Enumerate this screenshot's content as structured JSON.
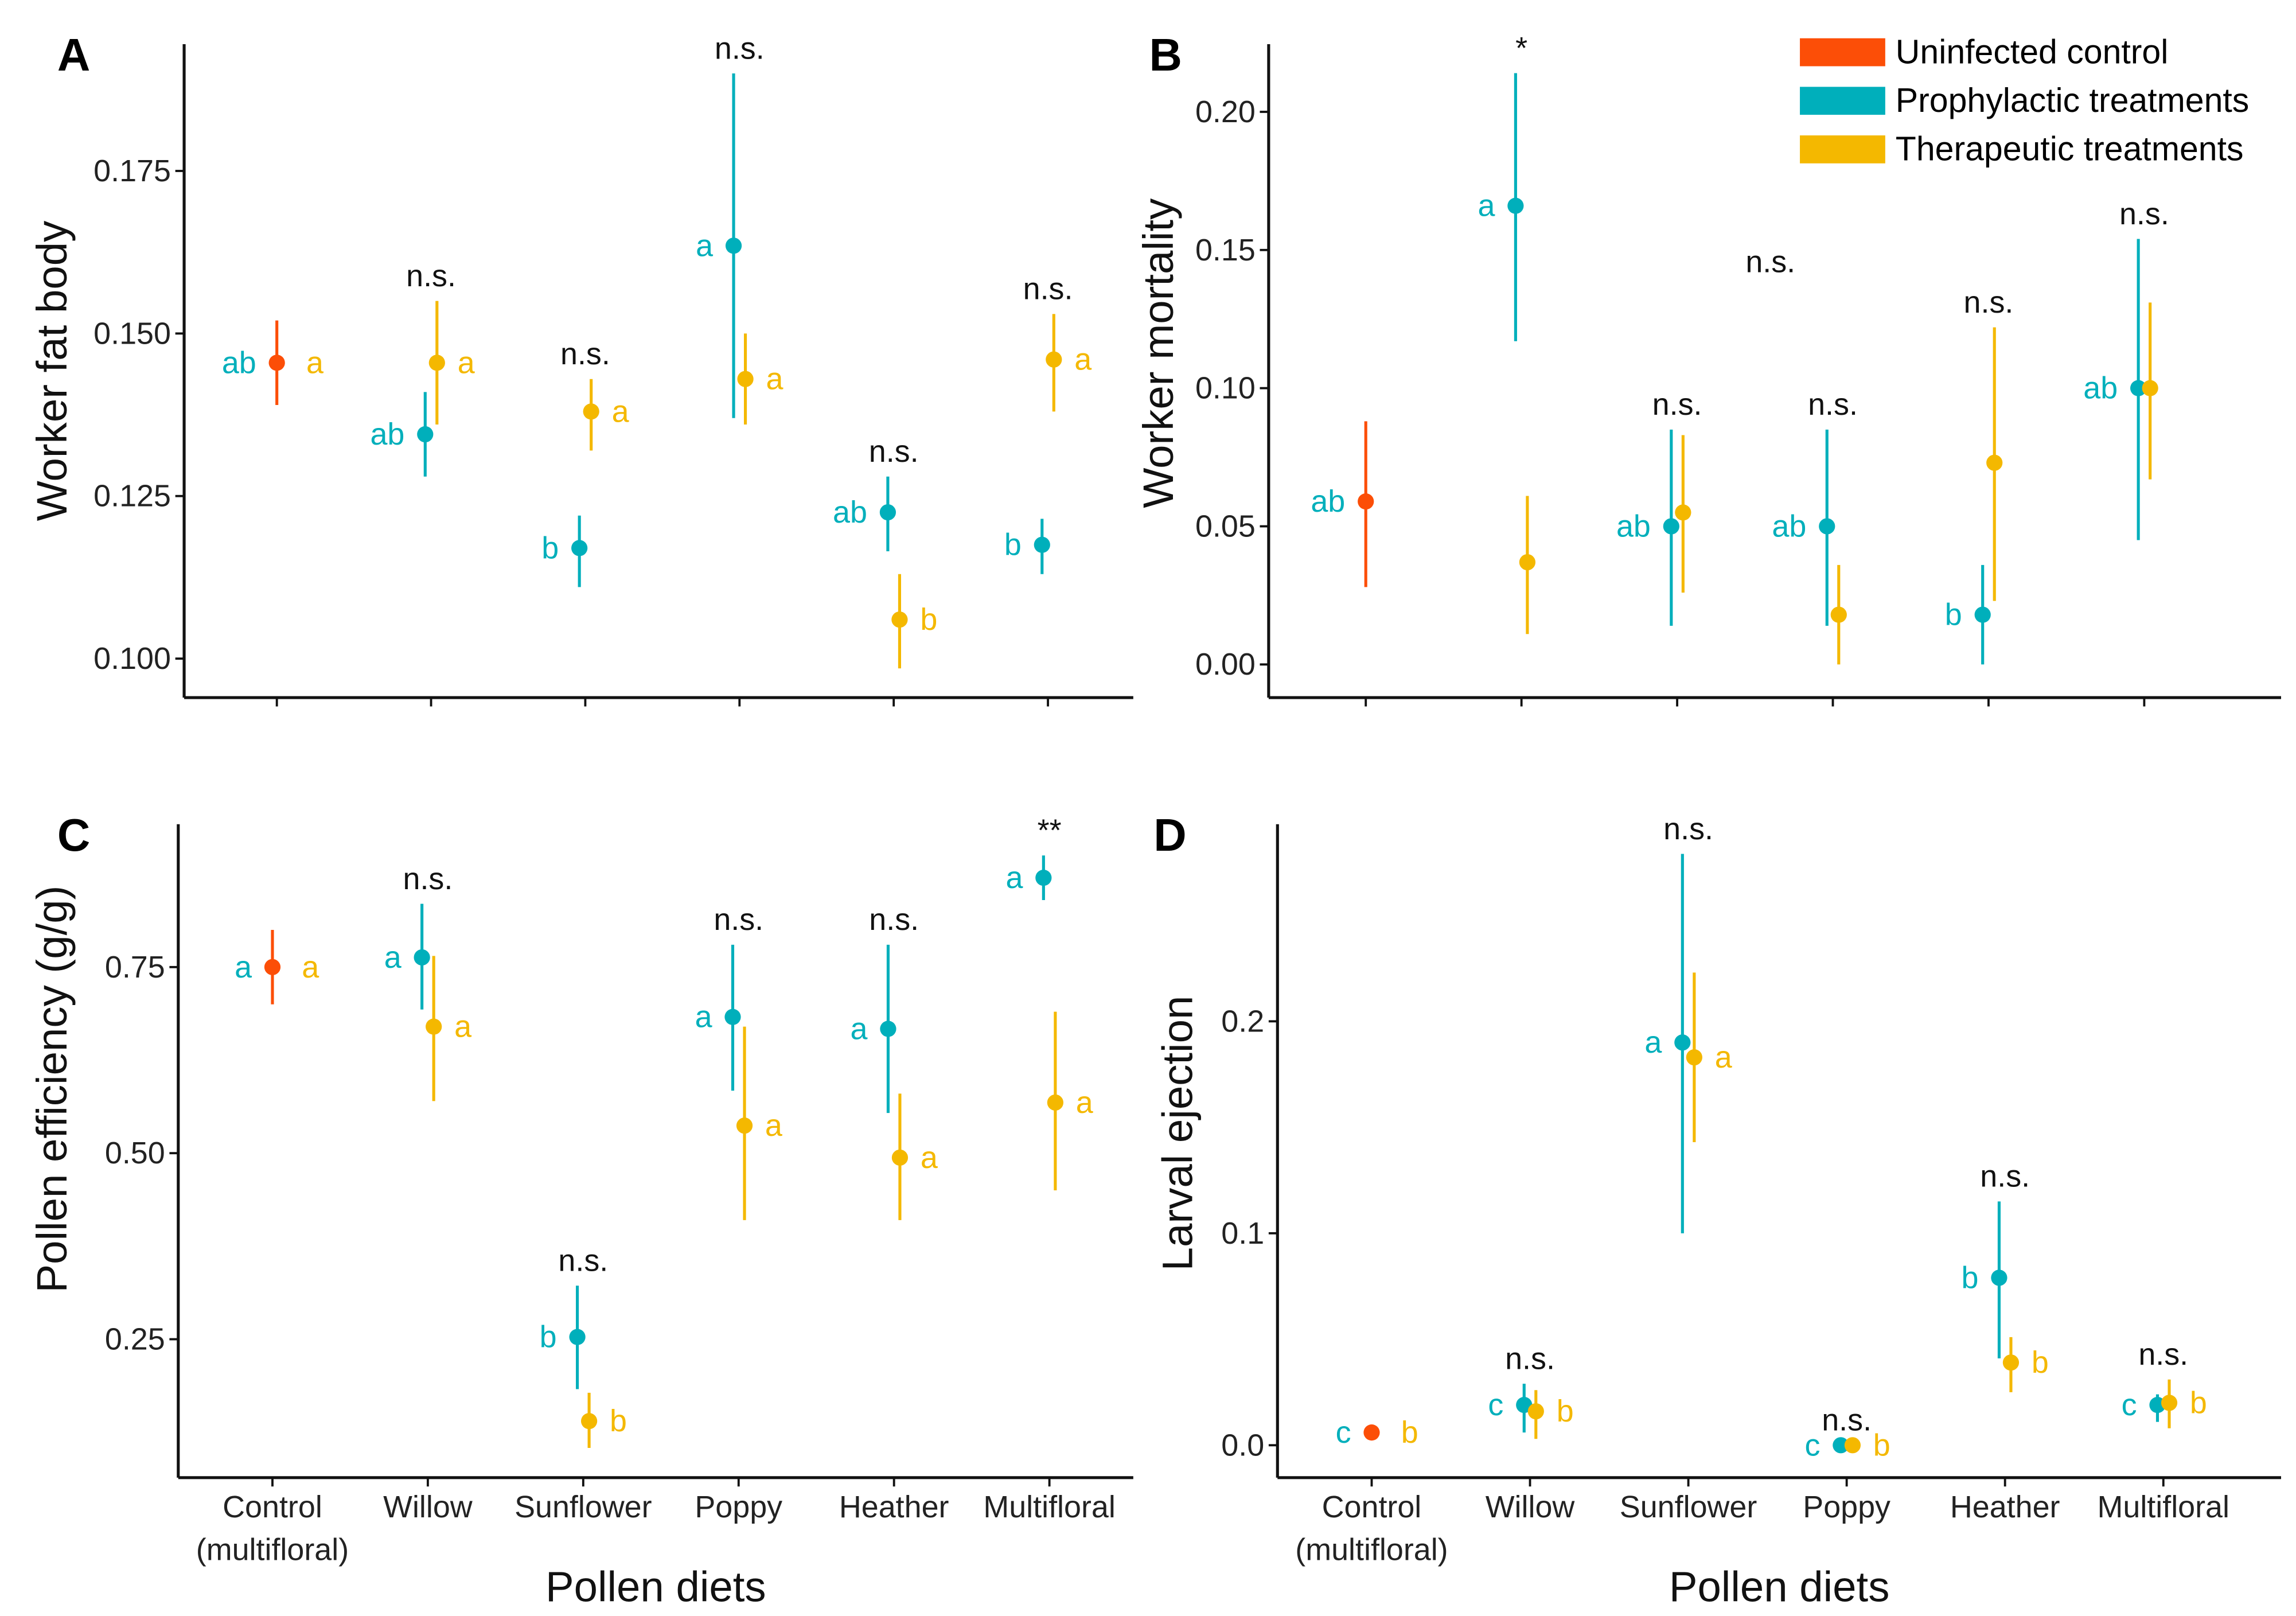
{
  "colors": {
    "control": "#FC4E07",
    "prophylactic": "#00AFBB",
    "therapeutic": "#F4B800"
  },
  "legend": [
    {
      "label": "Uninfected control",
      "color_key": "control"
    },
    {
      "label": "Prophylactic treatments",
      "color_key": "prophylactic"
    },
    {
      "label": "Therapeutic treatments",
      "color_key": "therapeutic"
    }
  ],
  "chart_data": [
    {
      "panel": "A",
      "type": "scatter",
      "ylabel": "Worker fat body",
      "xlabel": "",
      "categories": [
        "Control (multifloral)",
        "Willow",
        "Sunflower",
        "Poppy",
        "Heather",
        "Multifloral"
      ],
      "show_xtick_labels": false,
      "ylim": [
        0.094,
        0.1945
      ],
      "yticks": [
        "0.100",
        "0.125",
        "0.150",
        "0.175"
      ],
      "control": {
        "mean": 0.1455,
        "lo": 0.139,
        "hi": 0.152,
        "letter_prophylactic": "ab",
        "letter_therapeutic": "a"
      },
      "prophylactic": [
        {
          "mean": 0.1345,
          "lo": 0.128,
          "hi": 0.141,
          "letter": "ab"
        },
        {
          "mean": 0.117,
          "lo": 0.111,
          "hi": 0.122,
          "letter": "b"
        },
        {
          "mean": 0.1635,
          "lo": 0.137,
          "hi": 0.19,
          "letter": "a"
        },
        {
          "mean": 0.1225,
          "lo": 0.1165,
          "hi": 0.128,
          "letter": "ab"
        },
        {
          "mean": 0.1175,
          "lo": 0.113,
          "hi": 0.1215,
          "letter": "b"
        }
      ],
      "therapeutic": [
        {
          "mean": 0.1455,
          "lo": 0.136,
          "hi": 0.155,
          "letter": "a"
        },
        {
          "mean": 0.138,
          "lo": 0.132,
          "hi": 0.143,
          "letter": "a"
        },
        {
          "mean": 0.143,
          "lo": 0.136,
          "hi": 0.15,
          "letter": "a"
        },
        {
          "mean": 0.106,
          "lo": 0.0985,
          "hi": 0.113,
          "letter": "b"
        },
        {
          "mean": 0.146,
          "lo": 0.138,
          "hi": 0.153,
          "letter": "a"
        }
      ],
      "significance": [
        "n.s.",
        "n.s.",
        "n.s.",
        "n.s.",
        "n.s."
      ]
    },
    {
      "panel": "B",
      "type": "scatter",
      "ylabel": "Worker mortality",
      "xlabel": "",
      "categories": [
        "Control (multifloral)",
        "Willow",
        "Sunflower",
        "Poppy",
        "Heather",
        "Multifloral"
      ],
      "show_xtick_labels": false,
      "ylim": [
        -0.012,
        0.2245
      ],
      "yticks": [
        "0.00",
        "0.05",
        "0.10",
        "0.15",
        "0.20"
      ],
      "control": {
        "mean": 0.059,
        "lo": 0.028,
        "hi": 0.088,
        "letter_prophylactic": "ab",
        "letter_therapeutic": ""
      },
      "prophylactic": [
        {
          "mean": 0.166,
          "lo": 0.117,
          "hi": 0.214,
          "letter": "a"
        },
        {
          "mean": 0.05,
          "lo": 0.014,
          "hi": 0.085,
          "letter": "ab"
        },
        {
          "mean": 0.05,
          "lo": 0.014,
          "hi": 0.085,
          "letter": "ab"
        },
        {
          "mean": 0.018,
          "lo": 0.0,
          "hi": 0.036,
          "letter": "b"
        },
        {
          "mean": 0.1,
          "lo": 0.045,
          "hi": 0.154,
          "letter": "ab"
        }
      ],
      "therapeutic": [
        {
          "mean": 0.037,
          "lo": 0.011,
          "hi": 0.061,
          "letter": ""
        },
        {
          "mean": 0.055,
          "lo": 0.026,
          "hi": 0.083,
          "letter": ""
        },
        {
          "mean": 0.018,
          "lo": 0.0,
          "hi": 0.036,
          "letter": ""
        },
        {
          "mean": 0.073,
          "lo": 0.023,
          "hi": 0.122,
          "letter": ""
        },
        {
          "mean": 0.1,
          "lo": 0.067,
          "hi": 0.131,
          "letter": ""
        }
      ],
      "significance": [
        "*",
        "n.s.",
        "n.s.",
        "n.s.",
        "n.s."
      ],
      "therapeutic_overall": "n.s."
    },
    {
      "panel": "C",
      "type": "scatter",
      "ylabel": "Pollen efficiency (g/g)",
      "xlabel": "Pollen diets",
      "categories": [
        "Control (multifloral)",
        "Willow",
        "Sunflower",
        "Poppy",
        "Heather",
        "Multifloral"
      ],
      "show_xtick_labels": true,
      "ylim": [
        0.064,
        0.942
      ],
      "yticks": [
        "0.25",
        "0.50",
        "0.75"
      ],
      "control": {
        "mean": 0.75,
        "lo": 0.7,
        "hi": 0.8,
        "letter_prophylactic": "a",
        "letter_therapeutic": "a"
      },
      "prophylactic": [
        {
          "mean": 0.763,
          "lo": 0.693,
          "hi": 0.835,
          "letter": "a"
        },
        {
          "mean": 0.253,
          "lo": 0.183,
          "hi": 0.322,
          "letter": "b"
        },
        {
          "mean": 0.683,
          "lo": 0.584,
          "hi": 0.78,
          "letter": "a"
        },
        {
          "mean": 0.667,
          "lo": 0.554,
          "hi": 0.78,
          "letter": "a"
        },
        {
          "mean": 0.87,
          "lo": 0.84,
          "hi": 0.9,
          "letter": "a"
        }
      ],
      "therapeutic": [
        {
          "mean": 0.67,
          "lo": 0.57,
          "hi": 0.765,
          "letter": "a"
        },
        {
          "mean": 0.14,
          "lo": 0.104,
          "hi": 0.178,
          "letter": "b"
        },
        {
          "mean": 0.537,
          "lo": 0.41,
          "hi": 0.67,
          "letter": "a"
        },
        {
          "mean": 0.494,
          "lo": 0.41,
          "hi": 0.58,
          "letter": "a"
        },
        {
          "mean": 0.568,
          "lo": 0.45,
          "hi": 0.69,
          "letter": "a"
        }
      ],
      "significance": [
        "n.s.",
        "n.s.",
        "n.s.",
        "n.s.",
        "**"
      ]
    },
    {
      "panel": "D",
      "type": "scatter",
      "ylabel": "Larval ejection",
      "xlabel": "Pollen diets",
      "categories": [
        "Control (multifloral)",
        "Willow",
        "Sunflower",
        "Poppy",
        "Heather",
        "Multifloral"
      ],
      "show_xtick_labels": true,
      "ylim": [
        -0.0153,
        0.293
      ],
      "yticks": [
        "0.0",
        "0.1",
        "0.2"
      ],
      "control": {
        "mean": 0.006,
        "lo": 0.006,
        "hi": 0.006,
        "letter_prophylactic": "c",
        "letter_therapeutic": "b"
      },
      "prophylactic": [
        {
          "mean": 0.019,
          "lo": 0.006,
          "hi": 0.029,
          "letter": "c"
        },
        {
          "mean": 0.19,
          "lo": 0.1,
          "hi": 0.279,
          "letter": "a"
        },
        {
          "mean": 0.0,
          "lo": 0.0,
          "hi": 0.0,
          "letter": "c"
        },
        {
          "mean": 0.079,
          "lo": 0.041,
          "hi": 0.115,
          "letter": "b"
        },
        {
          "mean": 0.019,
          "lo": 0.011,
          "hi": 0.024,
          "letter": "c"
        }
      ],
      "therapeutic": [
        {
          "mean": 0.016,
          "lo": 0.003,
          "hi": 0.026,
          "letter": "b"
        },
        {
          "mean": 0.183,
          "lo": 0.143,
          "hi": 0.223,
          "letter": "a"
        },
        {
          "mean": 0.0,
          "lo": 0.0,
          "hi": 0.0,
          "letter": "b"
        },
        {
          "mean": 0.039,
          "lo": 0.025,
          "hi": 0.051,
          "letter": "b"
        },
        {
          "mean": 0.02,
          "lo": 0.008,
          "hi": 0.031,
          "letter": "b"
        }
      ],
      "significance": [
        "n.s.",
        "n.s.",
        "n.s.",
        "n.s.",
        "n.s."
      ]
    }
  ]
}
